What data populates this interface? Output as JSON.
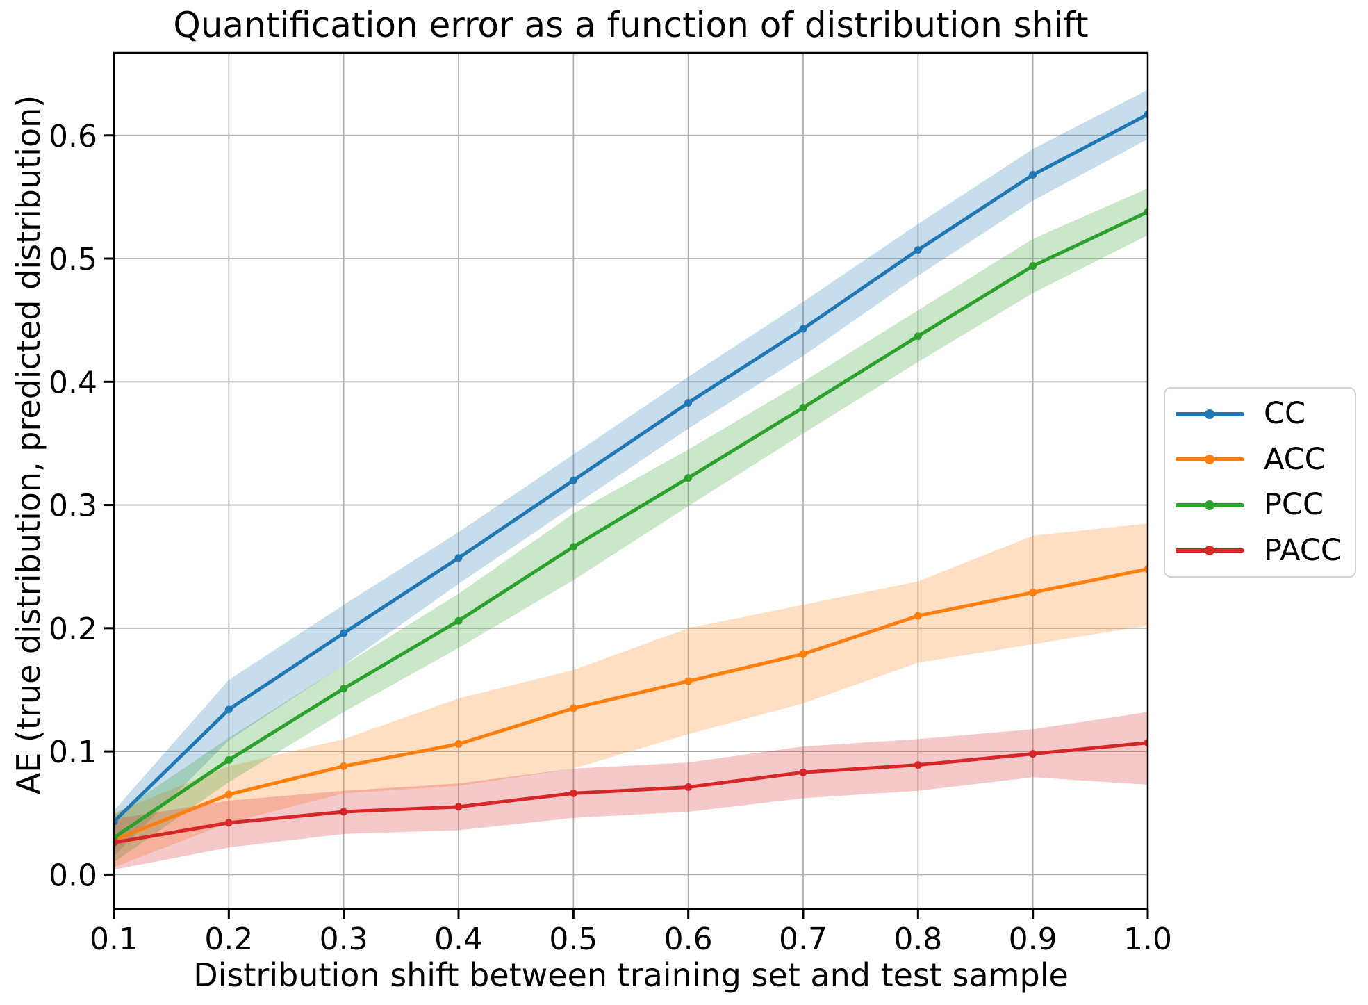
{
  "chart_data": {
    "type": "line",
    "title": "Quantification error as a function of distribution shift",
    "xlabel": "Distribution shift between training set and test sample",
    "ylabel": "AE (true distribution, predicted distribution)",
    "x": [
      0.1,
      0.2,
      0.3,
      0.4,
      0.5,
      0.6,
      0.7,
      0.8,
      0.9,
      1.0
    ],
    "x_tick_labels": [
      "0.1",
      "0.2",
      "0.3",
      "0.4",
      "0.5",
      "0.6",
      "0.7",
      "0.8",
      "0.9",
      "1.0"
    ],
    "y_tick_labels": [
      "0.0",
      "0.1",
      "0.2",
      "0.3",
      "0.4",
      "0.5",
      "0.6"
    ],
    "xlim": [
      0.1,
      1.0
    ],
    "ylim": [
      -0.028,
      0.667
    ],
    "grid": true,
    "grid_color": "#b0b0b0",
    "spine_color": "#000000",
    "band_opacity": 0.25,
    "legend_position": "outside-center-right",
    "series": [
      {
        "name": "CC",
        "color": "#1f77b4",
        "values": [
          0.043,
          0.134,
          0.196,
          0.257,
          0.32,
          0.383,
          0.443,
          0.507,
          0.568,
          0.617
        ],
        "band_upper": [
          0.052,
          0.158,
          0.219,
          0.278,
          0.341,
          0.404,
          0.465,
          0.528,
          0.589,
          0.637
        ],
        "band_lower": [
          0.015,
          0.109,
          0.17,
          0.236,
          0.299,
          0.362,
          0.421,
          0.486,
          0.547,
          0.597
        ]
      },
      {
        "name": "ACC",
        "color": "#ff7f0e",
        "values": [
          0.028,
          0.065,
          0.088,
          0.106,
          0.135,
          0.157,
          0.179,
          0.21,
          0.229,
          0.248
        ],
        "band_upper": [
          0.05,
          0.088,
          0.11,
          0.143,
          0.166,
          0.2,
          0.219,
          0.238,
          0.275,
          0.285
        ],
        "band_lower": [
          0.006,
          0.042,
          0.066,
          0.072,
          0.086,
          0.114,
          0.139,
          0.172,
          0.187,
          0.202
        ]
      },
      {
        "name": "PCC",
        "color": "#2ca02c",
        "values": [
          0.03,
          0.093,
          0.151,
          0.206,
          0.266,
          0.322,
          0.379,
          0.437,
          0.494,
          0.538
        ],
        "band_upper": [
          0.048,
          0.111,
          0.17,
          0.228,
          0.293,
          0.345,
          0.4,
          0.458,
          0.516,
          0.557
        ],
        "band_lower": [
          0.01,
          0.075,
          0.132,
          0.184,
          0.239,
          0.299,
          0.358,
          0.416,
          0.472,
          0.519
        ]
      },
      {
        "name": "PACC",
        "color": "#d62728",
        "values": [
          0.026,
          0.042,
          0.051,
          0.055,
          0.066,
          0.071,
          0.083,
          0.089,
          0.098,
          0.107
        ],
        "band_upper": [
          0.045,
          0.06,
          0.068,
          0.074,
          0.086,
          0.091,
          0.104,
          0.11,
          0.118,
          0.132
        ],
        "band_lower": [
          0.004,
          0.022,
          0.033,
          0.036,
          0.046,
          0.051,
          0.062,
          0.068,
          0.079,
          0.073
        ]
      }
    ]
  }
}
